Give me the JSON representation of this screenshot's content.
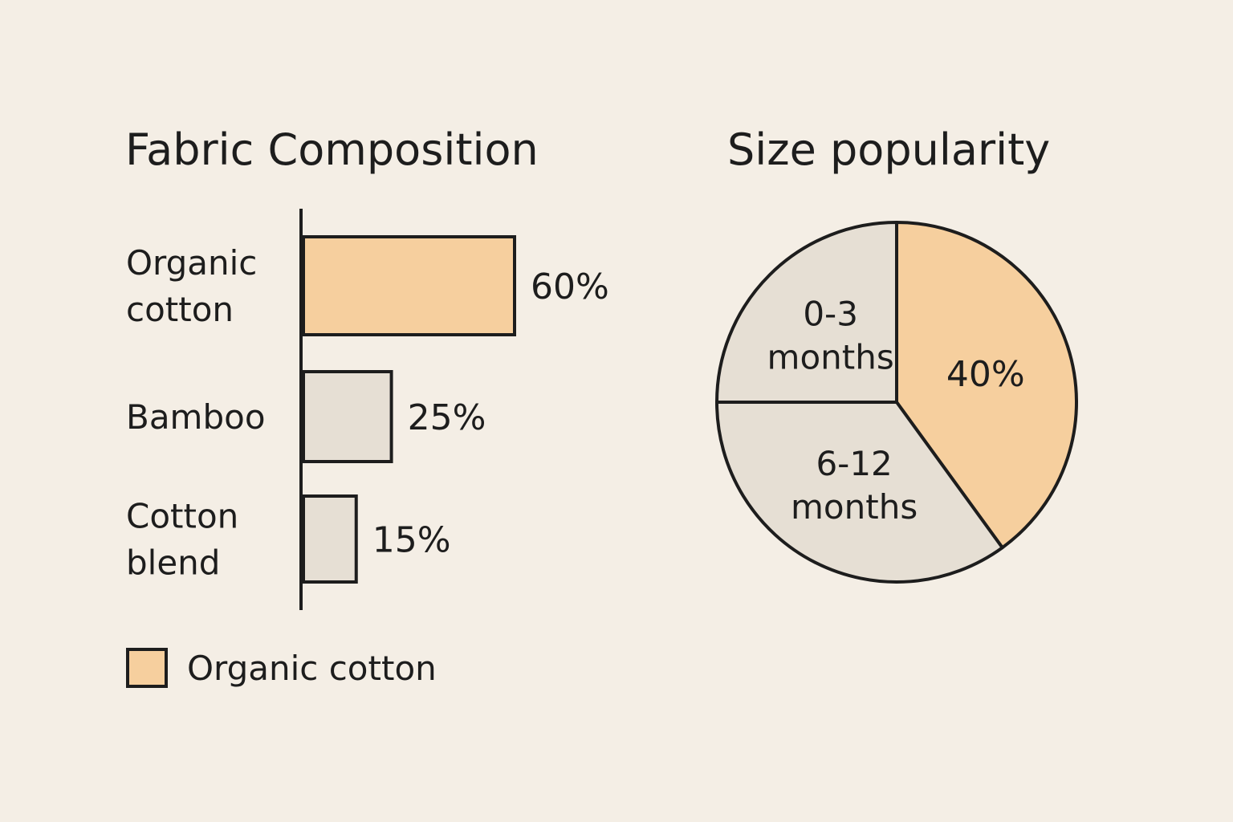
{
  "chart_data": [
    {
      "type": "bar",
      "orientation": "horizontal",
      "title": "Fabric Composition",
      "categories": [
        {
          "label_lines": [
            "Organic",
            "cotton"
          ],
          "label": "Organic cotton"
        },
        {
          "label_lines": [
            "Bamboo"
          ],
          "label": "Bamboo"
        },
        {
          "label_lines": [
            "Cotton",
            "blend"
          ],
          "label": "Cotton blend"
        }
      ],
      "values": [
        60,
        25,
        15
      ],
      "value_labels": [
        "60%",
        "25%",
        "15%"
      ],
      "highlight_index": 0,
      "legend": {
        "label": "Organic cotton",
        "placement": "bottom-left"
      },
      "xlim": [
        0,
        60
      ],
      "grid": false
    },
    {
      "type": "pie",
      "title": "Size popularity",
      "slices": [
        {
          "label_lines": [],
          "value": 40,
          "value_label": "40%",
          "highlight": true
        },
        {
          "label_lines": [
            "6-12",
            "months"
          ],
          "value": 35,
          "value_label": "",
          "highlight": false
        },
        {
          "label_lines": [
            "0-3",
            "months"
          ],
          "value": 25,
          "value_label": "",
          "highlight": false
        }
      ]
    }
  ],
  "colors": {
    "background": "#f4eee5",
    "highlight_fill": "#f6cf9e",
    "neutral_fill": "#e6dfd4",
    "stroke": "#1d1d1d"
  }
}
